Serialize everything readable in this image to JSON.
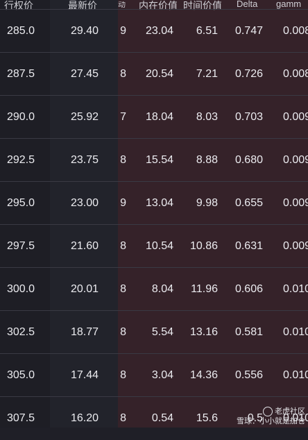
{
  "header": {
    "strike": "行权价",
    "last": "最新价",
    "change": "动",
    "intrinsic": "内在价值",
    "time_value": "时间价值",
    "delta": "Delta",
    "gamma": "gamm"
  },
  "rows": [
    {
      "strike": "285.0",
      "last": "29.40",
      "chg": "9",
      "intrinsic": "23.04",
      "time": "6.51",
      "delta": "0.747",
      "gamma": "0.008"
    },
    {
      "strike": "287.5",
      "last": "27.45",
      "chg": "8",
      "intrinsic": "20.54",
      "time": "7.21",
      "delta": "0.726",
      "gamma": "0.008"
    },
    {
      "strike": "290.0",
      "last": "25.92",
      "chg": "7",
      "intrinsic": "18.04",
      "time": "8.03",
      "delta": "0.703",
      "gamma": "0.009"
    },
    {
      "strike": "292.5",
      "last": "23.75",
      "chg": "8",
      "intrinsic": "15.54",
      "time": "8.88",
      "delta": "0.680",
      "gamma": "0.009"
    },
    {
      "strike": "295.0",
      "last": "23.00",
      "chg": "9",
      "intrinsic": "13.04",
      "time": "9.98",
      "delta": "0.655",
      "gamma": "0.009"
    },
    {
      "strike": "297.5",
      "last": "21.60",
      "chg": "8",
      "intrinsic": "10.54",
      "time": "10.86",
      "delta": "0.631",
      "gamma": "0.009"
    },
    {
      "strike": "300.0",
      "last": "20.01",
      "chg": "8",
      "intrinsic": "8.04",
      "time": "11.96",
      "delta": "0.606",
      "gamma": "0.010"
    },
    {
      "strike": "302.5",
      "last": "18.77",
      "chg": "8",
      "intrinsic": "5.54",
      "time": "13.16",
      "delta": "0.581",
      "gamma": "0.010"
    },
    {
      "strike": "305.0",
      "last": "17.44",
      "chg": "8",
      "intrinsic": "3.04",
      "time": "14.36",
      "delta": "0.556",
      "gamma": "0.010"
    },
    {
      "strike": "307.5",
      "last": "16.20",
      "chg": "8",
      "intrinsic": "0.54",
      "time": "15.6",
      "delta": "0.5",
      "gamma": "0.010"
    }
  ],
  "watermark": {
    "line1": "老虎社区",
    "line2": "雪球：小小就是加仓"
  }
}
